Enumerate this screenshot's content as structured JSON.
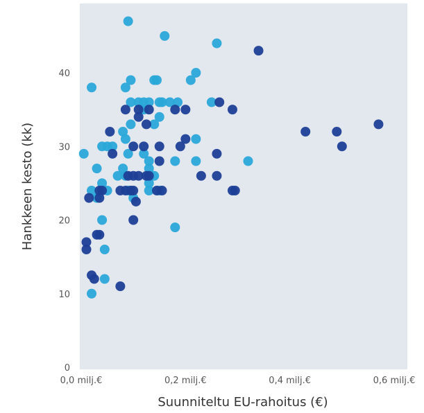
{
  "chart_data": {
    "type": "scatter",
    "title": "",
    "xlabel": "Suunniteltu EU-rahoitus (€)",
    "ylabel": "Hankkeen kesto (kk)",
    "xlim": [
      0,
      0.6
    ],
    "ylim": [
      0,
      48
    ],
    "x_ticks": [
      {
        "value": 0.0,
        "label": "0,0 milj.€"
      },
      {
        "value": 0.2,
        "label": "0,2 milj.€"
      },
      {
        "value": 0.4,
        "label": "0,4 milj.€"
      },
      {
        "value": 0.6,
        "label": "0,6 milj.€"
      }
    ],
    "y_ticks": [
      {
        "value": 0,
        "label": "0"
      },
      {
        "value": 10,
        "label": "10"
      },
      {
        "value": 20,
        "label": "20"
      },
      {
        "value": 30,
        "label": "30"
      },
      {
        "value": 40,
        "label": "40"
      }
    ],
    "grid": false,
    "legend": "none",
    "colors": {
      "plot_background": "#e3e7ee",
      "light": "#2aa8d8",
      "medium": "#1a8ac4",
      "dark": "#1e3f96",
      "axis_text": "#555555"
    },
    "series": [
      {
        "color": "#2aa8d8",
        "points": [
          [
            0.09,
            47
          ],
          [
            0.16,
            45
          ],
          [
            0.26,
            44
          ],
          [
            0.02,
            38
          ],
          [
            0.085,
            38
          ],
          [
            0.095,
            39
          ],
          [
            0.14,
            39
          ],
          [
            0.145,
            39
          ],
          [
            0.21,
            39
          ],
          [
            0.22,
            40
          ],
          [
            0.095,
            36
          ],
          [
            0.11,
            36
          ],
          [
            0.12,
            36
          ],
          [
            0.13,
            36
          ],
          [
            0.15,
            36
          ],
          [
            0.155,
            36
          ],
          [
            0.17,
            36
          ],
          [
            0.185,
            36
          ],
          [
            0.25,
            36
          ],
          [
            0.12,
            35
          ],
          [
            0.15,
            34
          ],
          [
            0.095,
            33
          ],
          [
            0.14,
            33
          ],
          [
            0.08,
            32
          ],
          [
            0.085,
            31
          ],
          [
            0.22,
            31
          ],
          [
            0.09,
            29
          ],
          [
            0.12,
            29
          ],
          [
            0.13,
            28
          ],
          [
            0.18,
            28
          ],
          [
            0.22,
            28
          ],
          [
            0.32,
            28
          ],
          [
            0.03,
            27
          ],
          [
            0.08,
            27
          ],
          [
            0.13,
            27
          ],
          [
            0.07,
            26
          ],
          [
            0.085,
            26
          ],
          [
            0.14,
            26
          ],
          [
            0.04,
            25
          ],
          [
            0.13,
            25
          ],
          [
            0.02,
            24
          ],
          [
            0.05,
            24
          ],
          [
            0.09,
            24
          ],
          [
            0.13,
            24
          ],
          [
            0.15,
            24
          ],
          [
            0.03,
            23
          ],
          [
            0.1,
            23
          ],
          [
            0.005,
            29
          ],
          [
            0.04,
            30
          ],
          [
            0.05,
            30
          ],
          [
            0.06,
            30
          ],
          [
            0.04,
            20
          ],
          [
            0.18,
            19
          ],
          [
            0.045,
            16
          ],
          [
            0.045,
            12
          ],
          [
            0.02,
            10
          ]
        ]
      },
      {
        "color": "#1e3f96",
        "points": [
          [
            0.34,
            43
          ],
          [
            0.265,
            36
          ],
          [
            0.085,
            35
          ],
          [
            0.11,
            35
          ],
          [
            0.13,
            35
          ],
          [
            0.18,
            35
          ],
          [
            0.29,
            35
          ],
          [
            0.11,
            34
          ],
          [
            0.125,
            33
          ],
          [
            0.055,
            32
          ],
          [
            0.43,
            32
          ],
          [
            0.49,
            32
          ],
          [
            0.57,
            33
          ],
          [
            0.2,
            31
          ],
          [
            0.1,
            30
          ],
          [
            0.12,
            30
          ],
          [
            0.15,
            30
          ],
          [
            0.19,
            30
          ],
          [
            0.5,
            30
          ],
          [
            0.06,
            29
          ],
          [
            0.15,
            28
          ],
          [
            0.26,
            29
          ],
          [
            0.09,
            26
          ],
          [
            0.1,
            26
          ],
          [
            0.11,
            26
          ],
          [
            0.125,
            26
          ],
          [
            0.13,
            26
          ],
          [
            0.23,
            26
          ],
          [
            0.26,
            26
          ],
          [
            0.035,
            24
          ],
          [
            0.04,
            24
          ],
          [
            0.075,
            24
          ],
          [
            0.085,
            24
          ],
          [
            0.095,
            24
          ],
          [
            0.1,
            24
          ],
          [
            0.145,
            24
          ],
          [
            0.155,
            24
          ],
          [
            0.29,
            24
          ],
          [
            0.295,
            24
          ],
          [
            0.015,
            23
          ],
          [
            0.035,
            23
          ],
          [
            0.105,
            22.5
          ],
          [
            0.1,
            20
          ],
          [
            0.035,
            18
          ],
          [
            0.03,
            18
          ],
          [
            0.01,
            17
          ],
          [
            0.01,
            16
          ],
          [
            0.02,
            12.5
          ],
          [
            0.025,
            12
          ],
          [
            0.075,
            11
          ],
          [
            0.2,
            35
          ]
        ]
      }
    ]
  }
}
